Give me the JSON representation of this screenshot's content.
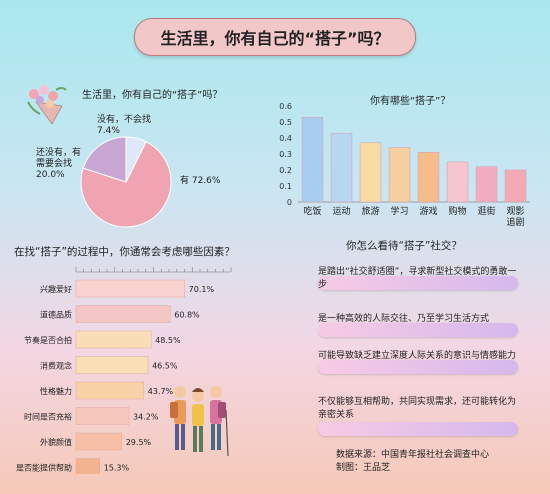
{
  "title": "生活里，你有自己的“搭子”吗？",
  "pie_section": {
    "title": "生活里，你有自己的“搭子”吗？"
  },
  "bar_section": {
    "title": "你有哪些“搭子”？"
  },
  "hbar_section": {
    "title": "在找“搭子”的过程中，你通常会考虑哪些因素？"
  },
  "views": {
    "title": "你怎么看待“搭子”社交？",
    "items": [
      {
        "text": "是踏出“社交舒适圈”，寻求新型社交模式的勇敢一步"
      },
      {
        "text": "是一种高效的人际交往、乃至学习生活方式"
      },
      {
        "text": "可能导致缺乏建立深度人际关系的意识与情感能力"
      },
      {
        "text": "不仅能够互相帮助，共同实现需求，还可能转化为亲密关系"
      }
    ]
  },
  "source": {
    "line1": "数据来源：中国青年报社社会调查中心",
    "line2": "制图：王品芝"
  },
  "chart_data": [
    {
      "type": "pie",
      "title": "生活里，你有自己的“搭子”吗？",
      "slices": [
        {
          "label": "有",
          "value": 72.6,
          "display": "有 72.6%",
          "color": "#f0a3b1"
        },
        {
          "label": "还没有，有需要会找",
          "value": 20.0,
          "display_lines": [
            "还没有，有",
            "需要会找",
            "20.0%"
          ],
          "color": "#c7a6d4"
        },
        {
          "label": "没有，不会找",
          "value": 7.4,
          "display_lines": [
            "没有，不会找",
            "7.4%"
          ],
          "color": "#dfe8f6"
        }
      ]
    },
    {
      "type": "bar",
      "title": "你有哪些“搭子”？",
      "categories": [
        "吃饭",
        "运动",
        "旅游",
        "学习",
        "游戏",
        "购物",
        "逛街",
        "观影追剧"
      ],
      "category_lines": [
        [
          "吃饭"
        ],
        [
          "运动"
        ],
        [
          "旅游"
        ],
        [
          "学习"
        ],
        [
          "游戏"
        ],
        [
          "购物"
        ],
        [
          "逛街"
        ],
        [
          "观影",
          "追剧"
        ]
      ],
      "values": [
        0.53,
        0.43,
        0.37,
        0.34,
        0.31,
        0.25,
        0.22,
        0.2
      ],
      "colors": [
        "#a7cdf0",
        "#b8d6f2",
        "#f7dba3",
        "#f6cfa1",
        "#f5bd8b",
        "#f6c5cf",
        "#f3adc0",
        "#f4a9b7"
      ],
      "ylim": [
        0,
        0.6
      ],
      "yticks": [
        "0",
        "0.1",
        "0.2",
        "0.3",
        "0.4",
        "0.5",
        "0.6"
      ]
    },
    {
      "type": "bar",
      "orientation": "horizontal",
      "title": "在找“搭子”的过程中，你通常会考虑哪些因素？",
      "categories": [
        "兴趣爱好",
        "道德品质",
        "节奏是否合拍",
        "消费观念",
        "性格魅力",
        "时间是否充裕",
        "外貌颜值",
        "是否能提供帮助"
      ],
      "values": [
        70.1,
        60.8,
        48.5,
        46.5,
        43.7,
        34.2,
        29.5,
        15.3
      ],
      "value_labels": [
        "70.1%",
        "60.8%",
        "48.5%",
        "46.5%",
        "43.7%",
        "34.2%",
        "29.5%",
        "15.3%"
      ],
      "colors": [
        "#f8d3cf",
        "#f5c6c6",
        "#f8ddb7",
        "#f8dfb5",
        "#f7d2a6",
        "#f6c8bb",
        "#f6bfa6",
        "#f3b38e"
      ],
      "xlim": [
        0,
        100
      ]
    }
  ]
}
